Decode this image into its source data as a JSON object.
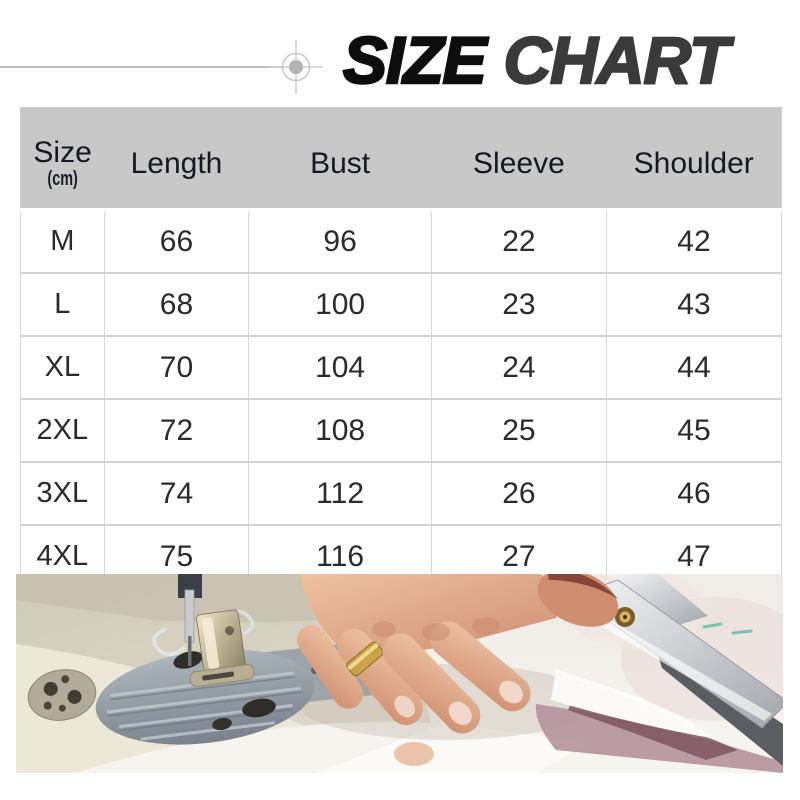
{
  "page_title": {
    "word1": "SIZE",
    "word2": "CHART"
  },
  "colors": {
    "title_word1": "#0d0d0d",
    "title_word2": "#3a3a3a",
    "decorative_rule": "#bdbdbd",
    "table_header_bg": "#c8c8c8",
    "table_border": "#d2d2d2",
    "header_text": "#16181f",
    "body_text": "#2b2b2d"
  },
  "table": {
    "unit_note": "(cm)"
  },
  "chart_data": {
    "type": "table",
    "title": "SIZE CHART",
    "unit": "cm",
    "columns": [
      "Size",
      "Length",
      "Bust",
      "Sleeve",
      "Shoulder"
    ],
    "row_keys": [
      "size",
      "length",
      "bust",
      "sleeve",
      "shoulder"
    ],
    "rows": [
      {
        "size": "M",
        "length": 66,
        "bust": 96,
        "sleeve": 22,
        "shoulder": 42
      },
      {
        "size": "L",
        "length": 68,
        "bust": 100,
        "sleeve": 23,
        "shoulder": 43
      },
      {
        "size": "XL",
        "length": 70,
        "bust": 104,
        "sleeve": 24,
        "shoulder": 44
      },
      {
        "size": "2XL",
        "length": 72,
        "bust": 108,
        "sleeve": 25,
        "shoulder": 45
      },
      {
        "size": "3XL",
        "length": 74,
        "bust": 112,
        "sleeve": 26,
        "shoulder": 46
      },
      {
        "size": "4XL",
        "length": 75,
        "bust": 116,
        "sleeve": 27,
        "shoulder": 47
      }
    ]
  },
  "photo": {
    "description": "Hands pressing white fabric beside a sewing machine needle plate while scissors cut the cloth"
  }
}
